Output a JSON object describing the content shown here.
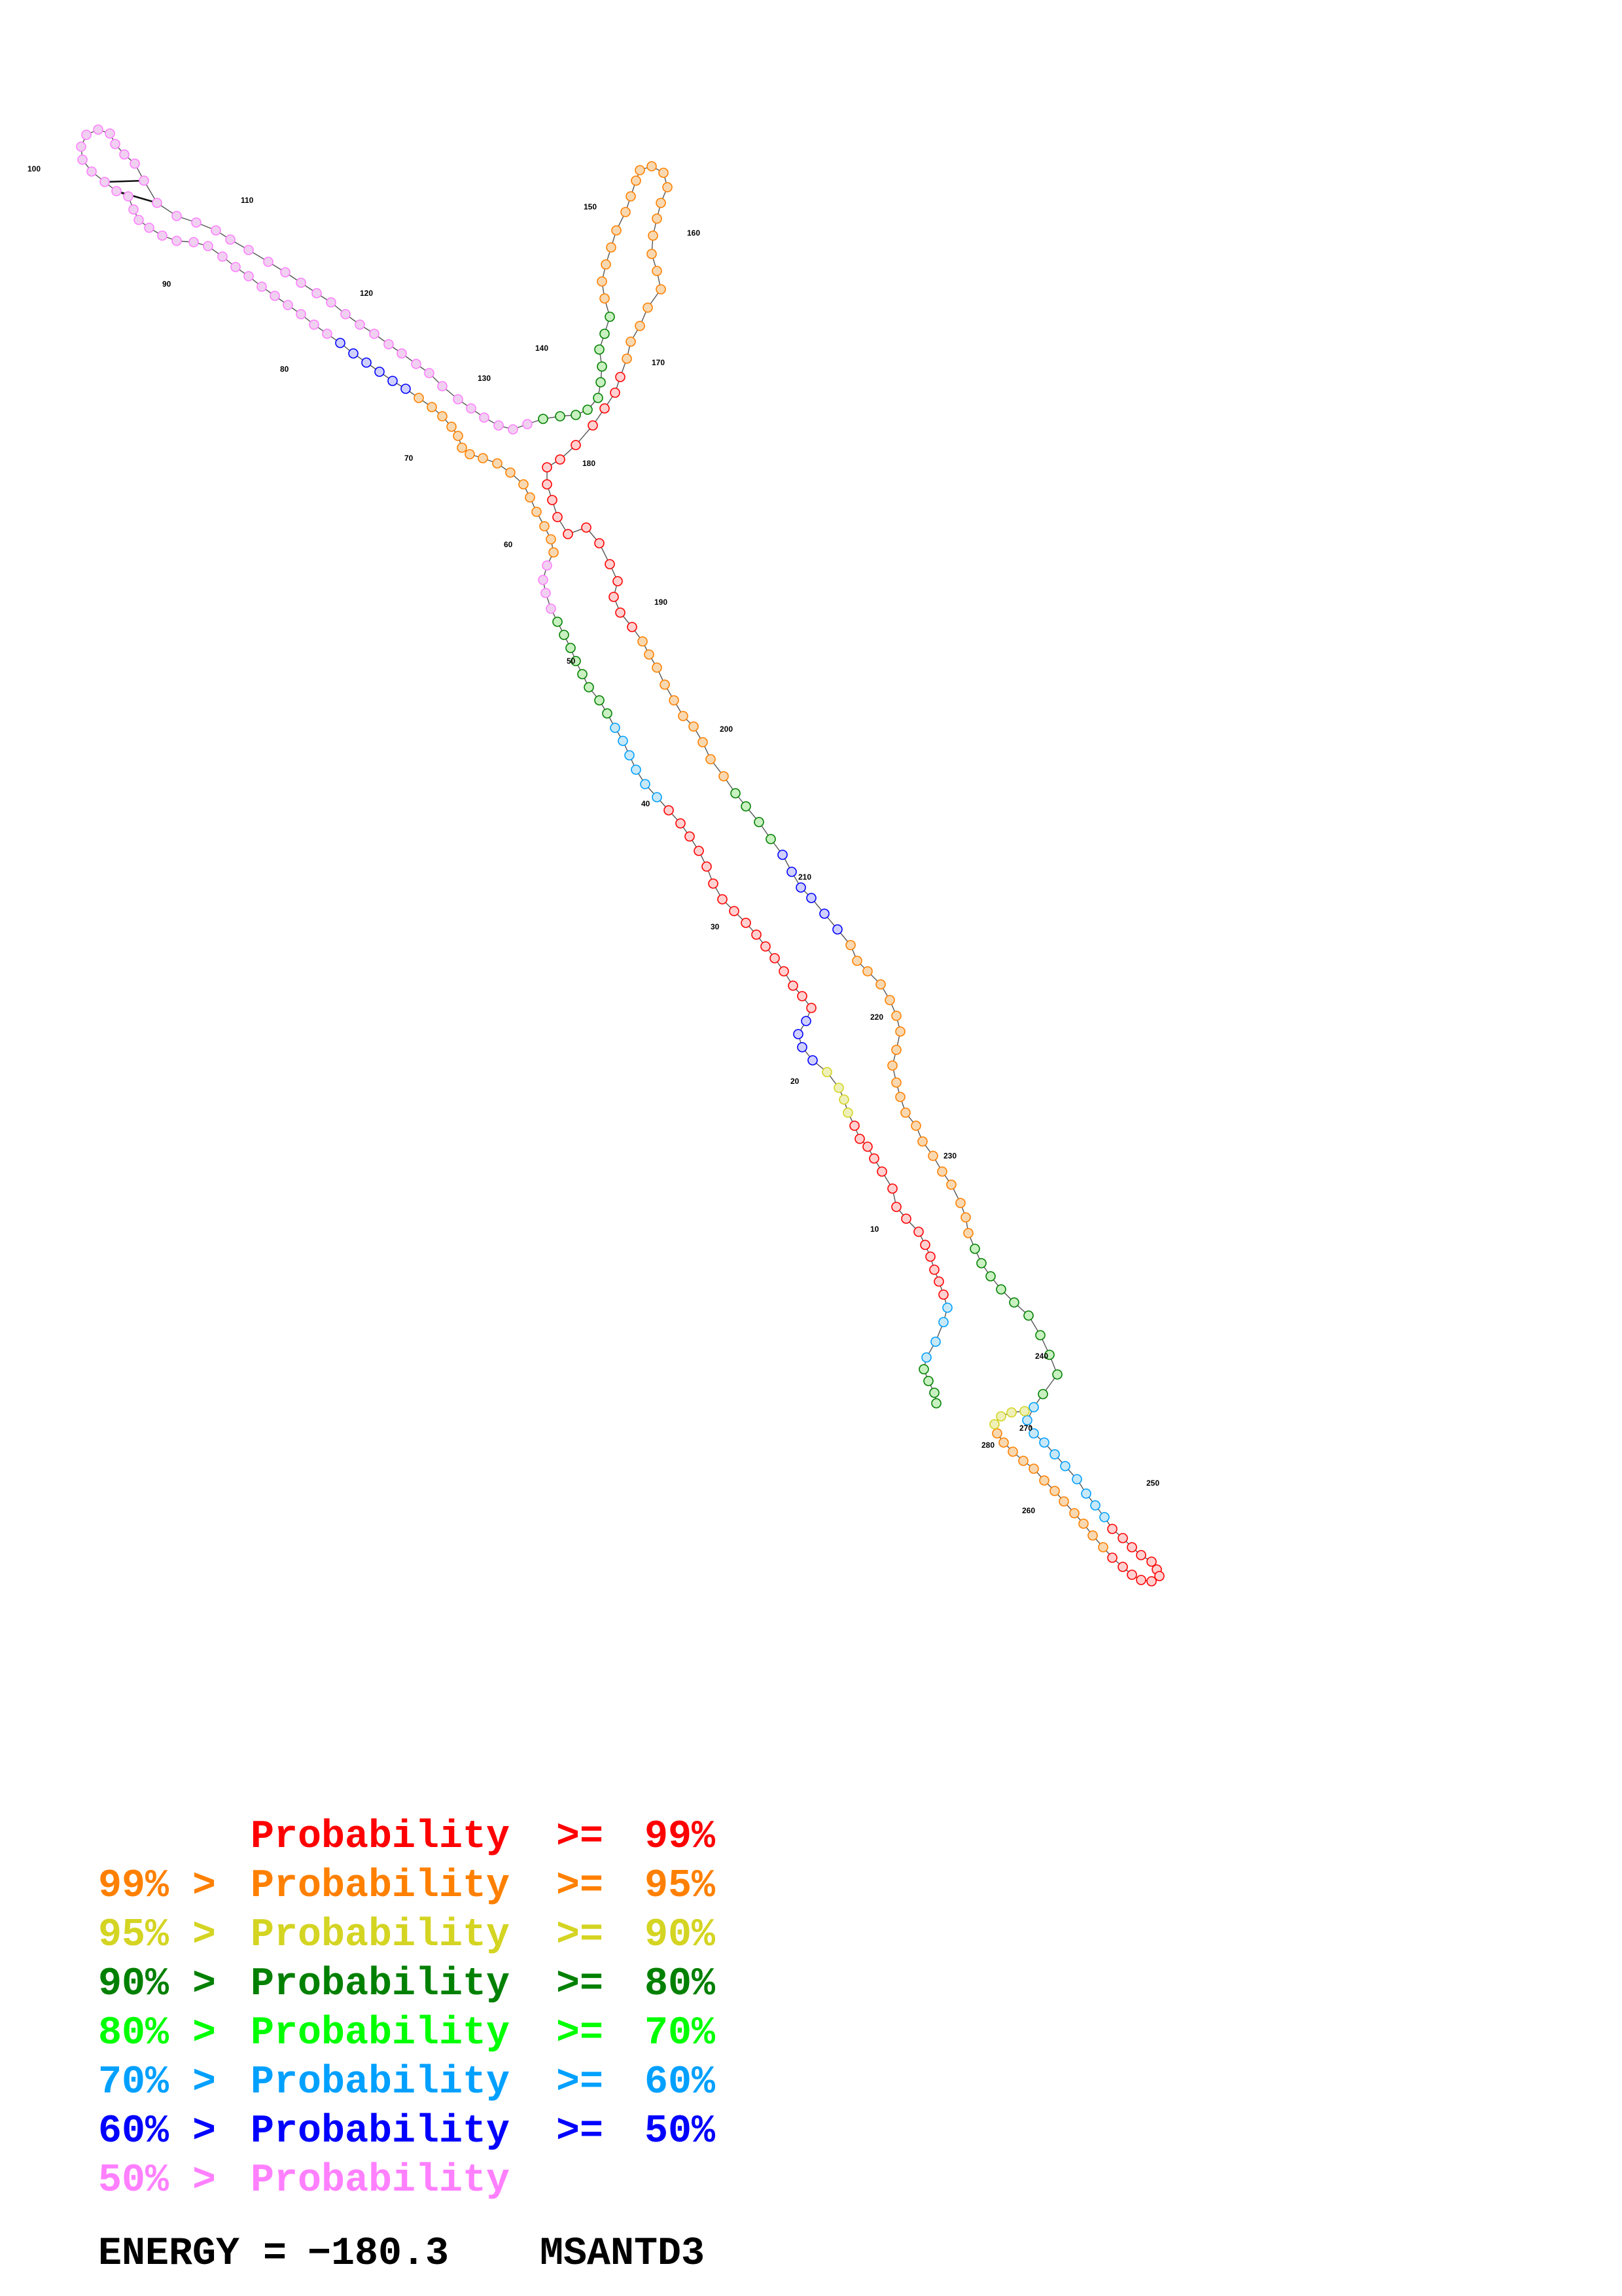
{
  "diagram": {
    "position_labels": [
      "10",
      "20",
      "30",
      "40",
      "50",
      "60",
      "70",
      "80",
      "90",
      "100",
      "110",
      "120",
      "130",
      "140",
      "150",
      "160",
      "170",
      "180",
      "190",
      "200",
      "210",
      "220",
      "230",
      "240",
      "250",
      "260",
      "270",
      "280"
    ],
    "colors": {
      "p99": "#ff0000",
      "p95": "#ff8000",
      "p90": "#d4d423",
      "p80": "#008000",
      "p70": "#00ff00",
      "p60": "#00a0ff",
      "p50": "#0000ff",
      "plow": "#ff80ff"
    }
  },
  "legend": [
    {
      "lhs": "",
      "mid": "Probability",
      "op": ">=",
      "rhs": "99%",
      "color": "#ff0000"
    },
    {
      "lhs": "99% >",
      "mid": "Probability",
      "op": ">=",
      "rhs": "95%",
      "color": "#ff8000"
    },
    {
      "lhs": "95% >",
      "mid": "Probability",
      "op": ">=",
      "rhs": "90%",
      "color": "#d4d423"
    },
    {
      "lhs": "90% >",
      "mid": "Probability",
      "op": ">=",
      "rhs": "80%",
      "color": "#008000"
    },
    {
      "lhs": "80% >",
      "mid": "Probability",
      "op": ">=",
      "rhs": "70%",
      "color": "#00ff00"
    },
    {
      "lhs": "70% >",
      "mid": "Probability",
      "op": ">=",
      "rhs": "60%",
      "color": "#00a0ff"
    },
    {
      "lhs": "60% >",
      "mid": "Probability",
      "op": ">=",
      "rhs": "50%",
      "color": "#0000ff"
    },
    {
      "lhs": "50% >",
      "mid": "Probability",
      "op": "",
      "rhs": "",
      "color": "#ff80ff"
    }
  ],
  "energy": {
    "label": "ENERGY = ",
    "value": "−180.3",
    "gene": "MSANTD3"
  }
}
